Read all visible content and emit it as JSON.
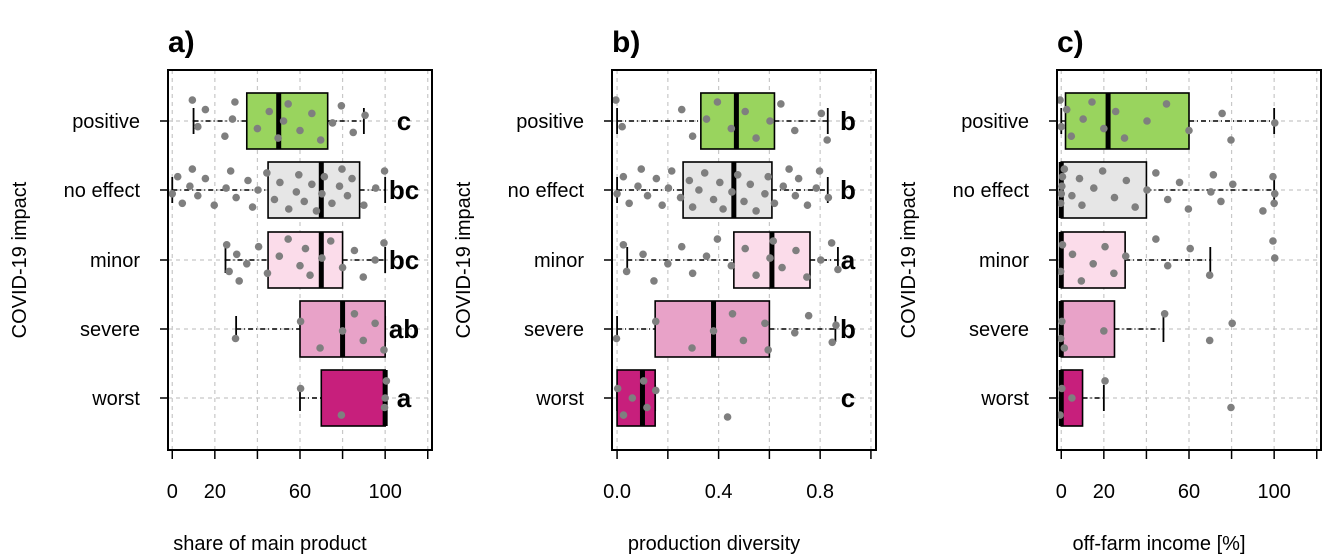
{
  "colors": {
    "positive": "#99d45e",
    "no effect": "#e6e6e6",
    "minor": "#fbdcea",
    "severe": "#e8a2c8",
    "worst": "#c71f7c",
    "points": "#7f7f7f",
    "grid": "#c8c8c8"
  },
  "chart_data": [
    {
      "type": "boxplot",
      "panel_label": "a)",
      "xlabel": "share of main product",
      "ylabel": "COVID-19 impact",
      "xlim": [
        -2,
        122
      ],
      "xticks": [
        0,
        20,
        60,
        100
      ],
      "xgrid": [
        0,
        20,
        40,
        60,
        80,
        100,
        120
      ],
      "categories": [
        "positive",
        "no effect",
        "minor",
        "severe",
        "worst"
      ],
      "groups": [
        {
          "category": "positive",
          "whisker_min": 10,
          "q1": 35,
          "median": 50,
          "q3": 73,
          "whisker_max": 90,
          "letter": "c",
          "points": [
            10,
            12,
            15,
            25,
            28,
            30,
            40,
            45,
            50,
            52,
            55,
            60,
            65,
            70,
            75,
            80,
            85,
            90
          ]
        },
        {
          "category": "no effect",
          "whisker_min": 0,
          "q1": 45,
          "median": 70,
          "q3": 88,
          "whisker_max": 100,
          "letter": "bc",
          "points": [
            0,
            2,
            5,
            8,
            10,
            12,
            15,
            20,
            25,
            28,
            30,
            35,
            38,
            40,
            45,
            48,
            50,
            55,
            58,
            60,
            62,
            65,
            68,
            70,
            72,
            75,
            78,
            80,
            82,
            85,
            90,
            95,
            100
          ]
        },
        {
          "category": "minor",
          "whisker_min": 25,
          "q1": 45,
          "median": 70,
          "q3": 80,
          "whisker_max": 100,
          "letter": "bc",
          "points": [
            25,
            27,
            30,
            32,
            35,
            40,
            45,
            50,
            55,
            60,
            62,
            65,
            70,
            75,
            80,
            85,
            90,
            95,
            100
          ]
        },
        {
          "category": "severe",
          "whisker_min": 30,
          "q1": 60,
          "median": 80,
          "q3": 100,
          "whisker_max": 100,
          "letter": "ab",
          "points": [
            30,
            60,
            70,
            80,
            85,
            90,
            95,
            100
          ]
        },
        {
          "category": "worst",
          "whisker_min": 60,
          "q1": 70,
          "median": 100,
          "q3": 100,
          "whisker_max": 100,
          "letter": "a",
          "points": [
            60,
            80,
            100,
            100,
            100
          ]
        }
      ]
    },
    {
      "type": "boxplot",
      "panel_label": "b)",
      "xlabel": "production diversity",
      "ylabel": "COVID-19 impact",
      "xlim": [
        -0.02,
        1.02
      ],
      "xticks": [
        0.0,
        0.4,
        0.8
      ],
      "xtick_labels": [
        "0.0",
        "0.4",
        "0.8"
      ],
      "xgrid": [
        0.0,
        0.2,
        0.4,
        0.6,
        0.8,
        1.0
      ],
      "categories": [
        "positive",
        "no effect",
        "minor",
        "severe",
        "worst"
      ],
      "groups": [
        {
          "category": "positive",
          "whisker_min": 0.0,
          "q1": 0.33,
          "median": 0.47,
          "q3": 0.62,
          "whisker_max": 0.83,
          "letter": "b",
          "points": [
            0.0,
            0.02,
            0.25,
            0.3,
            0.35,
            0.4,
            0.45,
            0.5,
            0.55,
            0.6,
            0.65,
            0.7,
            0.8,
            0.83
          ]
        },
        {
          "category": "no effect",
          "whisker_min": 0.0,
          "q1": 0.26,
          "median": 0.46,
          "q3": 0.61,
          "whisker_max": 0.83,
          "letter": "b",
          "points": [
            0.0,
            0.02,
            0.05,
            0.08,
            0.1,
            0.12,
            0.15,
            0.18,
            0.2,
            0.22,
            0.25,
            0.28,
            0.3,
            0.32,
            0.35,
            0.38,
            0.4,
            0.42,
            0.45,
            0.48,
            0.5,
            0.52,
            0.55,
            0.58,
            0.6,
            0.62,
            0.65,
            0.68,
            0.7,
            0.72,
            0.75,
            0.78,
            0.8,
            0.83
          ]
        },
        {
          "category": "minor",
          "whisker_min": 0.04,
          "q1": 0.46,
          "median": 0.61,
          "q3": 0.76,
          "whisker_max": 0.87,
          "letter": "a",
          "points": [
            0.02,
            0.04,
            0.1,
            0.15,
            0.2,
            0.25,
            0.3,
            0.35,
            0.4,
            0.45,
            0.5,
            0.55,
            0.6,
            0.62,
            0.65,
            0.7,
            0.75,
            0.8,
            0.85,
            0.87
          ]
        },
        {
          "category": "severe",
          "whisker_min": 0.0,
          "q1": 0.15,
          "median": 0.38,
          "q3": 0.6,
          "whisker_max": 0.86,
          "letter": "b",
          "points": [
            0.0,
            0.15,
            0.3,
            0.38,
            0.45,
            0.5,
            0.58,
            0.6,
            0.7,
            0.75,
            0.85,
            0.86
          ]
        },
        {
          "category": "worst",
          "whisker_min": 0.0,
          "q1": 0.0,
          "median": 0.1,
          "q3": 0.15,
          "whisker_max": 0.15,
          "letter": "c",
          "points": [
            0.0,
            0.03,
            0.06,
            0.1,
            0.12,
            0.15,
            0.44
          ]
        }
      ]
    },
    {
      "type": "boxplot",
      "panel_label": "c)",
      "xlabel": "off-farm income [%]",
      "ylabel": "COVID-19 impact",
      "xlim": [
        -2,
        122
      ],
      "xticks": [
        0,
        20,
        60,
        100
      ],
      "xgrid": [
        0,
        20,
        40,
        60,
        80,
        100,
        120
      ],
      "categories": [
        "positive",
        "no effect",
        "minor",
        "severe",
        "worst"
      ],
      "groups": [
        {
          "category": "positive",
          "whisker_min": 0,
          "q1": 2,
          "median": 22,
          "q3": 60,
          "whisker_max": 100,
          "letter": "",
          "points": [
            0,
            0,
            2,
            5,
            10,
            15,
            20,
            25,
            30,
            40,
            50,
            60,
            75,
            80,
            100
          ]
        },
        {
          "category": "no effect",
          "whisker_min": 0,
          "q1": 0,
          "median": 0,
          "q3": 40,
          "whisker_max": 100,
          "letter": "",
          "points": [
            0,
            0,
            0,
            0,
            2,
            5,
            8,
            10,
            15,
            20,
            25,
            30,
            35,
            40,
            45,
            50,
            55,
            60,
            70,
            72,
            75,
            80,
            95,
            100,
            100,
            100
          ]
        },
        {
          "category": "minor",
          "whisker_min": 0,
          "q1": 0,
          "median": 0,
          "q3": 30,
          "whisker_max": 70,
          "letter": "",
          "points": [
            0,
            0,
            5,
            10,
            15,
            20,
            25,
            30,
            45,
            50,
            60,
            70,
            100,
            100
          ]
        },
        {
          "category": "severe",
          "whisker_min": 0,
          "q1": 0,
          "median": 0,
          "q3": 25,
          "whisker_max": 48,
          "letter": "",
          "points": [
            0,
            0,
            2,
            20,
            48,
            70,
            80
          ]
        },
        {
          "category": "worst",
          "whisker_min": 0,
          "q1": 0,
          "median": 0,
          "q3": 10,
          "whisker_max": 20,
          "letter": "",
          "points": [
            0,
            0,
            5,
            20,
            80
          ]
        }
      ]
    }
  ]
}
